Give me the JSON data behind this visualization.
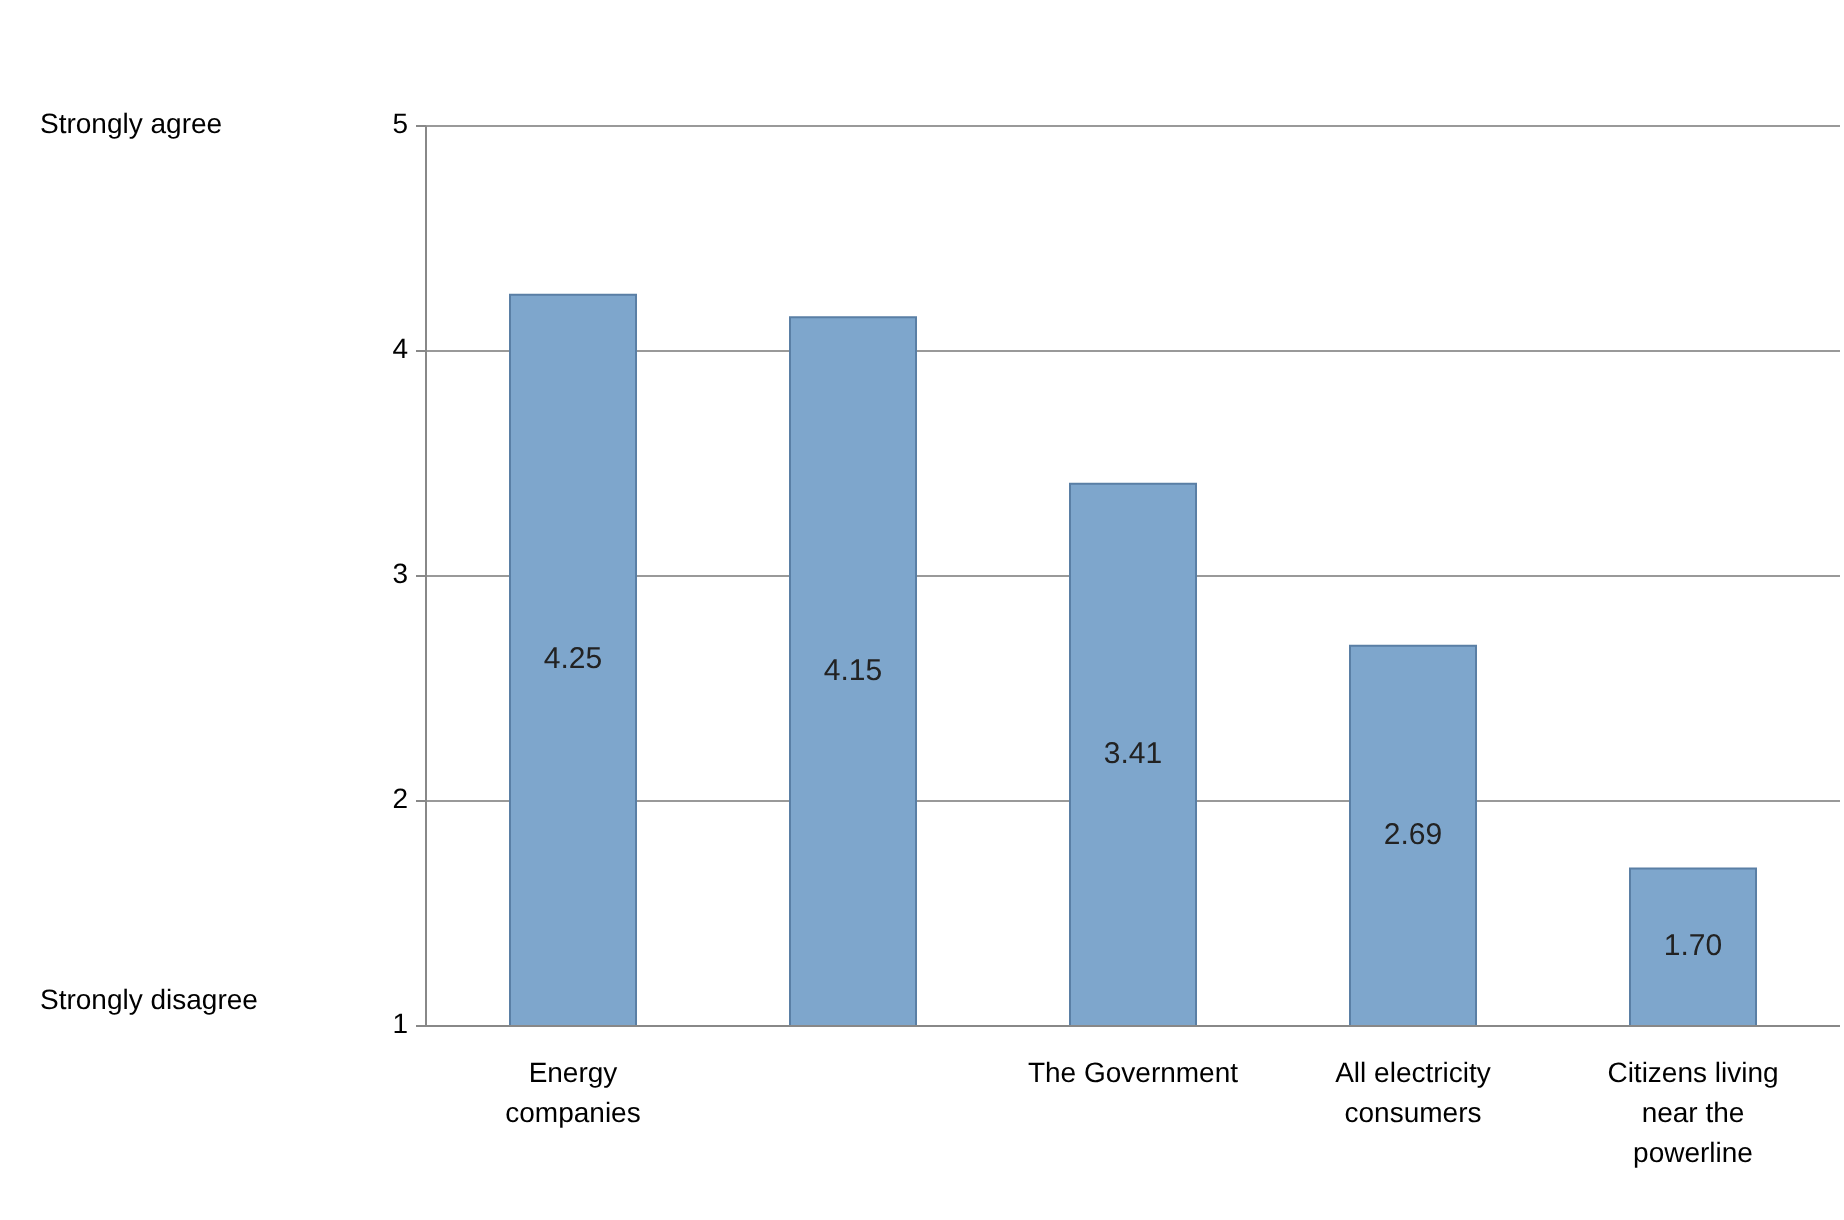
{
  "chart_data": {
    "type": "bar",
    "categories": [
      "Energy companies",
      null,
      "The Government",
      "All electricity consumers",
      "Citizens living near the powerline"
    ],
    "values": [
      4.25,
      4.15,
      3.41,
      2.69,
      1.7
    ],
    "color": "#7ea6cc",
    "ylim": [
      1,
      5
    ],
    "yticks": [
      1,
      2,
      3,
      4,
      5
    ],
    "value_labels": [
      "4.25",
      "4.15",
      "3.41",
      "2.69",
      "1.70"
    ],
    "grid": "y",
    "annotations": [
      "Strongly agree",
      "Strongly disagree"
    ]
  }
}
